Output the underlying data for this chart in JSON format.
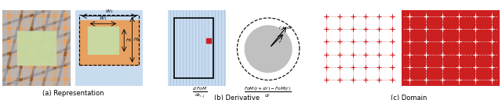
{
  "fig_width": 6.4,
  "fig_height": 1.28,
  "dpi": 100,
  "bg_color": "#ffffff",
  "panel_a_label": "(a) Representation",
  "panel_b_label": "(b) Derivative",
  "panel_c_label": "(c) Domain",
  "color_orange": "#E8A060",
  "color_green": "#C8D8A0",
  "color_blue_bg": "#A8C0D8",
  "color_lightblue": "#C8DCF0",
  "color_red": "#CC2020",
  "color_gray_circle": "#C0C0C0",
  "color_stripe": "#B0C8E0"
}
